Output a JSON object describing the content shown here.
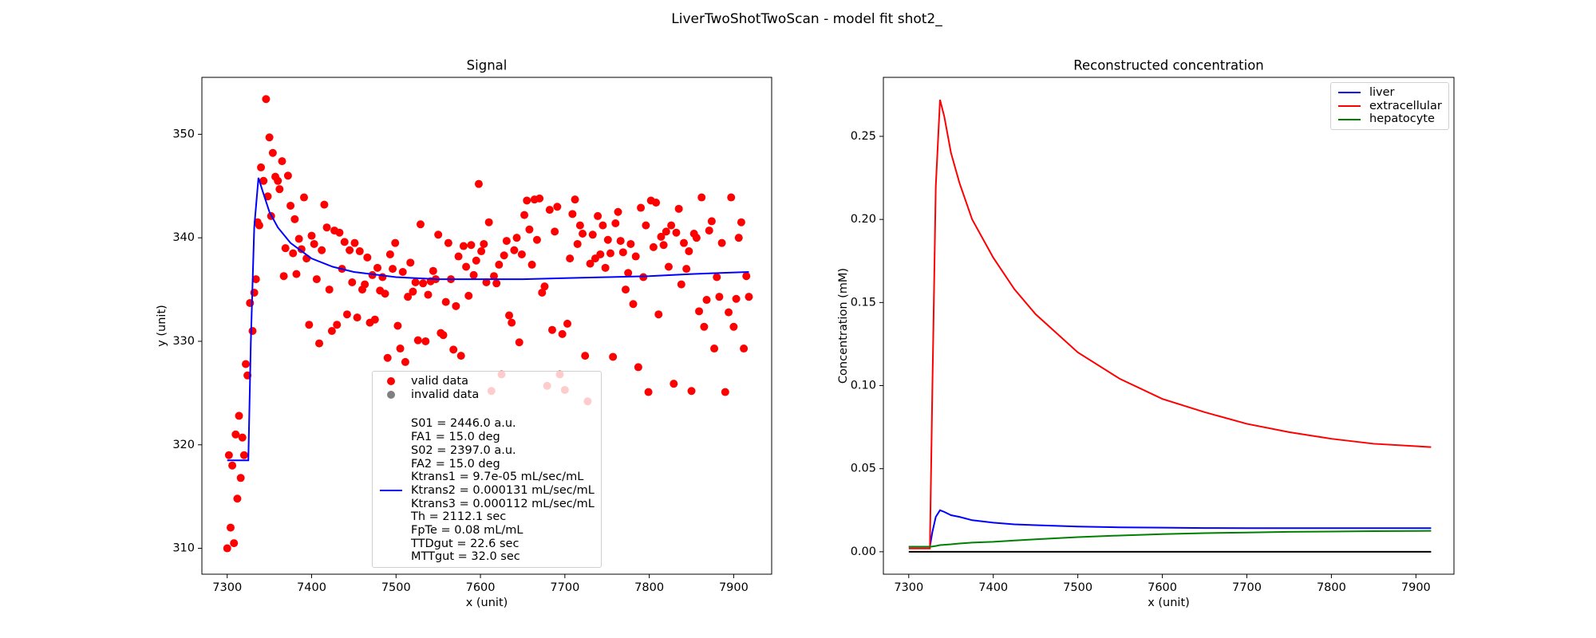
{
  "title": "LiverTwoShotTwoScan - model fit shot2_",
  "chart_data": [
    {
      "type": "scatter",
      "title": "Signal",
      "x_label": "x (unit)",
      "y_label": "y (unit)",
      "xlim": [
        7270,
        7945
      ],
      "xticks": [
        7300,
        7400,
        7500,
        7600,
        7700,
        7800,
        7900
      ],
      "ylim": [
        307.5,
        355.5
      ],
      "yticks": [
        310,
        320,
        330,
        340,
        350
      ],
      "legend": "lower center",
      "series": [
        {
          "name": "valid data",
          "type": "scatter",
          "color": "#ff0000",
          "x": [
            7300,
            7302,
            7304,
            7306,
            7308,
            7310,
            7312,
            7314,
            7316,
            7318,
            7320,
            7322,
            7324,
            7327,
            7330,
            7332,
            7334,
            7336,
            7338,
            7340,
            7343,
            7346,
            7348,
            7350,
            7352,
            7354,
            7357,
            7360,
            7362,
            7365,
            7367,
            7369,
            7372,
            7375,
            7378,
            7380,
            7382,
            7385,
            7388,
            7391,
            7394,
            7397,
            7400,
            7403,
            7406,
            7409,
            7412,
            7415,
            7418,
            7421,
            7424,
            7427,
            7430,
            7433,
            7436,
            7439,
            7442,
            7445,
            7448,
            7451,
            7454,
            7457,
            7460,
            7463,
            7466,
            7469,
            7472,
            7475,
            7478,
            7481,
            7484,
            7487,
            7490,
            7493,
            7496,
            7499,
            7502,
            7505,
            7508,
            7511,
            7514,
            7517,
            7520,
            7523,
            7526,
            7529,
            7532,
            7535,
            7538,
            7541,
            7544,
            7547,
            7550,
            7553,
            7556,
            7559,
            7562,
            7565,
            7568,
            7571,
            7574,
            7577,
            7580,
            7583,
            7586,
            7589,
            7592,
            7595,
            7598,
            7601,
            7604,
            7607,
            7610,
            7613,
            7616,
            7619,
            7622,
            7625,
            7628,
            7631,
            7634,
            7637,
            7640,
            7643,
            7646,
            7649,
            7652,
            7655,
            7658,
            7661,
            7664,
            7667,
            7670,
            7673,
            7676,
            7679,
            7682,
            7685,
            7688,
            7691,
            7694,
            7697,
            7700,
            7703,
            7706,
            7709,
            7712,
            7715,
            7718,
            7721,
            7724,
            7727,
            7730,
            7733,
            7736,
            7739,
            7742,
            7745,
            7748,
            7751,
            7754,
            7757,
            7760,
            7763,
            7766,
            7769,
            7772,
            7775,
            7778,
            7781,
            7784,
            7787,
            7790,
            7793,
            7796,
            7799,
            7802,
            7805,
            7808,
            7811,
            7814,
            7817,
            7820,
            7823,
            7826,
            7829,
            7832,
            7835,
            7838,
            7841,
            7844,
            7847,
            7850,
            7853,
            7856,
            7859,
            7862,
            7865,
            7868,
            7871,
            7874,
            7877,
            7880,
            7883,
            7886,
            7890,
            7894,
            7897,
            7900,
            7903,
            7906,
            7909,
            7912,
            7915,
            7918
          ],
          "values": [
            310,
            319,
            312,
            318,
            310.5,
            321,
            314.8,
            322.8,
            316.8,
            320.7,
            319,
            327.8,
            326.7,
            333.7,
            331,
            334.7,
            336,
            341.5,
            341.2,
            346.8,
            345.5,
            353.4,
            344,
            349.7,
            342.1,
            348.2,
            345.9,
            345.5,
            344.7,
            347.4,
            336.3,
            339,
            346,
            343.1,
            338.5,
            341.8,
            336.5,
            339.9,
            338.9,
            343.9,
            338,
            331.6,
            340.2,
            339.4,
            336,
            329.8,
            338.8,
            343.2,
            341,
            335,
            331,
            340.7,
            331.6,
            340.5,
            337,
            339.6,
            332.6,
            338.8,
            335.7,
            339.5,
            332.3,
            338.7,
            335,
            335.5,
            338.1,
            331.8,
            336.4,
            332.1,
            337.1,
            334.9,
            336.2,
            334.6,
            328.4,
            338.4,
            337,
            339.5,
            331.5,
            329.3,
            336.7,
            328,
            334.3,
            337.6,
            334.8,
            335.7,
            330.1,
            341.3,
            335.6,
            330,
            334.5,
            335.8,
            336.8,
            336,
            340.3,
            330.8,
            330.6,
            333.8,
            339.5,
            336,
            329.2,
            333.4,
            338.2,
            328.6,
            339.2,
            337.2,
            334.4,
            339.3,
            336.4,
            337.8,
            345.2,
            338.7,
            339.4,
            335.7,
            341.5,
            325.2,
            336.3,
            335.6,
            337.4,
            326.8,
            338.3,
            339.7,
            332.5,
            331.8,
            338.8,
            340,
            329.9,
            338.4,
            342.2,
            343.6,
            340.8,
            337.4,
            343.7,
            339.8,
            343.8,
            334.7,
            335.3,
            325.7,
            342.7,
            331.1,
            340.6,
            343,
            326.8,
            330.7,
            325.3,
            331.7,
            338,
            342.3,
            343.7,
            339.4,
            341.2,
            340.4,
            328.6,
            324.2,
            337.5,
            340.3,
            338,
            342.1,
            338.4,
            341.2,
            337.1,
            339.8,
            338.5,
            328.5,
            341.4,
            342.5,
            339.7,
            338.6,
            335,
            336.6,
            339.4,
            333.6,
            338.2,
            327.5,
            342.9,
            336.2,
            341.2,
            325.1,
            343.6,
            339.1,
            343.4,
            332.6,
            340.1,
            339.3,
            340.6,
            337.2,
            341.2,
            325.9,
            340.5,
            342.8,
            335.5,
            339.5,
            337,
            338.7,
            325.2,
            340.4,
            340,
            332.9,
            343.9,
            331.4,
            334,
            340.7,
            341.6,
            329.3,
            336.2,
            334.3,
            339.5,
            325.1,
            332.8,
            343.9,
            331.4,
            334.1,
            340,
            341.5,
            329.3,
            336.3,
            334.3
          ]
        },
        {
          "name": "invalid data",
          "type": "scatter",
          "color": "#808080",
          "x": [],
          "values": []
        },
        {
          "name": "S01 = 2446.0 a.u.\nFA1 = 15.0 deg\nS02 = 2397.0 a.u.\nFA2 = 15.0 deg\nKtrans1 = 9.7e-05 mL/sec/mL\nKtrans2 = 0.000131 mL/sec/mL\nKtrans3 = 0.000112 mL/sec/mL\nTh = 2112.1 sec\nFpTe = 0.08 mL/mL\nTTDgut = 22.6 sec\nMTTgut = 32.0 sec",
          "type": "line",
          "color": "#0000ff",
          "x": [
            7300,
            7325,
            7328,
            7332,
            7337,
            7342,
            7350,
            7360,
            7375,
            7400,
            7425,
            7450,
            7500,
            7550,
            7600,
            7650,
            7700,
            7750,
            7800,
            7850,
            7918
          ],
          "values": [
            318.5,
            318.5,
            330,
            341,
            345.8,
            344.5,
            342.5,
            341,
            339.5,
            338,
            337.2,
            336.7,
            336.2,
            336.0,
            336.0,
            336.0,
            336.1,
            336.2,
            336.3,
            336.5,
            336.7
          ]
        }
      ]
    },
    {
      "type": "line",
      "title": "Reconstructed concentration",
      "x_label": "x (unit)",
      "y_label": "Concentration (mM)",
      "xlim": [
        7270,
        7945
      ],
      "xticks": [
        7300,
        7400,
        7500,
        7600,
        7700,
        7800,
        7900
      ],
      "ylim": [
        -0.0135,
        0.2855
      ],
      "yticks": [
        {
          "value": 0,
          "label": "0.00"
        },
        {
          "value": 0.05,
          "label": "0.05"
        },
        {
          "value": 0.1,
          "label": "0.10"
        },
        {
          "value": 0.15,
          "label": "0.15"
        },
        {
          "value": 0.2,
          "label": "0.20"
        },
        {
          "value": 0.25,
          "label": "0.25"
        }
      ],
      "legend": "upper right",
      "series": [
        {
          "name": "liver",
          "type": "line",
          "color": "#0000ff",
          "x": [
            7300,
            7325,
            7328,
            7332,
            7337,
            7342,
            7350,
            7360,
            7375,
            7400,
            7425,
            7450,
            7500,
            7550,
            7600,
            7650,
            7700,
            7750,
            7800,
            7850,
            7918
          ],
          "values": [
            0.003,
            0.003,
            0.012,
            0.021,
            0.025,
            0.024,
            0.022,
            0.021,
            0.019,
            0.0175,
            0.0165,
            0.016,
            0.0152,
            0.0147,
            0.0145,
            0.0143,
            0.0142,
            0.0142,
            0.0142,
            0.0142,
            0.0142
          ]
        },
        {
          "name": "extracellular",
          "type": "line",
          "color": "#ff0000",
          "x": [
            7300,
            7325,
            7328,
            7332,
            7337,
            7342,
            7350,
            7360,
            7375,
            7400,
            7425,
            7450,
            7500,
            7550,
            7600,
            7650,
            7700,
            7750,
            7800,
            7850,
            7918
          ],
          "values": [
            0.002,
            0.002,
            0.1,
            0.22,
            0.272,
            0.262,
            0.24,
            0.222,
            0.2,
            0.177,
            0.158,
            0.143,
            0.12,
            0.104,
            0.092,
            0.084,
            0.077,
            0.072,
            0.068,
            0.065,
            0.063
          ]
        },
        {
          "name": "hepatocyte",
          "type": "line",
          "color": "#008000",
          "x": [
            7300,
            7325,
            7328,
            7332,
            7337,
            7342,
            7350,
            7360,
            7375,
            7400,
            7425,
            7450,
            7500,
            7550,
            7600,
            7650,
            7700,
            7750,
            7800,
            7850,
            7918
          ],
          "values": [
            0.003,
            0.003,
            0.0032,
            0.0035,
            0.004,
            0.0042,
            0.0045,
            0.005,
            0.0055,
            0.006,
            0.0068,
            0.0075,
            0.0088,
            0.0098,
            0.0106,
            0.0112,
            0.0116,
            0.012,
            0.0122,
            0.0124,
            0.0126
          ]
        },
        {
          "type": "line",
          "color": "#000000",
          "x": [
            7300,
            7918
          ],
          "values": [
            0,
            0
          ]
        }
      ]
    }
  ]
}
